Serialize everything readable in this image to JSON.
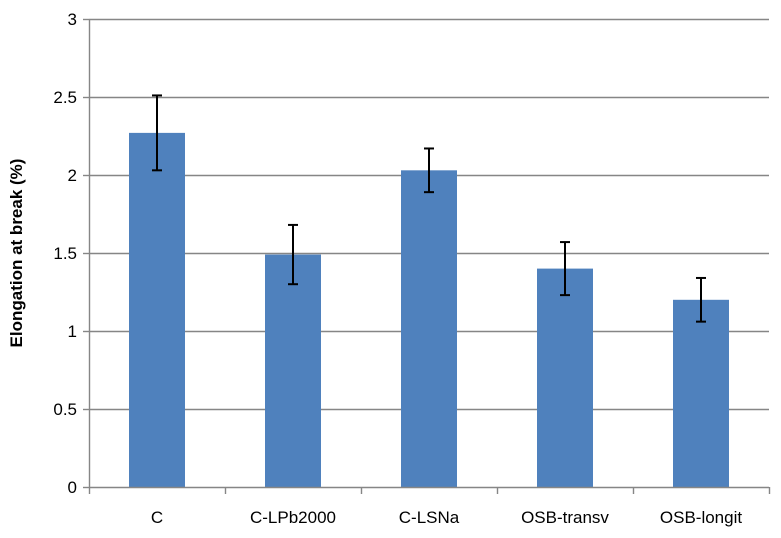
{
  "chart_data": {
    "type": "bar",
    "title": "",
    "xlabel": "",
    "ylabel": "Elongation at break (%)",
    "categories": [
      "C",
      "C-LPb2000",
      "C-LSNa",
      "OSB-transv",
      "OSB-longit"
    ],
    "values": [
      2.27,
      1.49,
      2.03,
      1.4,
      1.2
    ],
    "error_low": [
      2.03,
      1.3,
      1.89,
      1.23,
      1.06
    ],
    "error_high": [
      2.51,
      1.68,
      2.17,
      1.57,
      1.34
    ],
    "ylim": [
      0,
      3
    ],
    "yticks": [
      "0",
      "0.5",
      "1",
      "1.5",
      "2",
      "2.5",
      "3"
    ],
    "ytick_values": [
      0,
      0.5,
      1,
      1.5,
      2,
      2.5,
      3
    ],
    "grid": true,
    "legend": "none",
    "colors": {
      "bar": "#4F81BD",
      "grid": "#868686",
      "axis": "#868686",
      "errorbar": "#000000"
    }
  }
}
